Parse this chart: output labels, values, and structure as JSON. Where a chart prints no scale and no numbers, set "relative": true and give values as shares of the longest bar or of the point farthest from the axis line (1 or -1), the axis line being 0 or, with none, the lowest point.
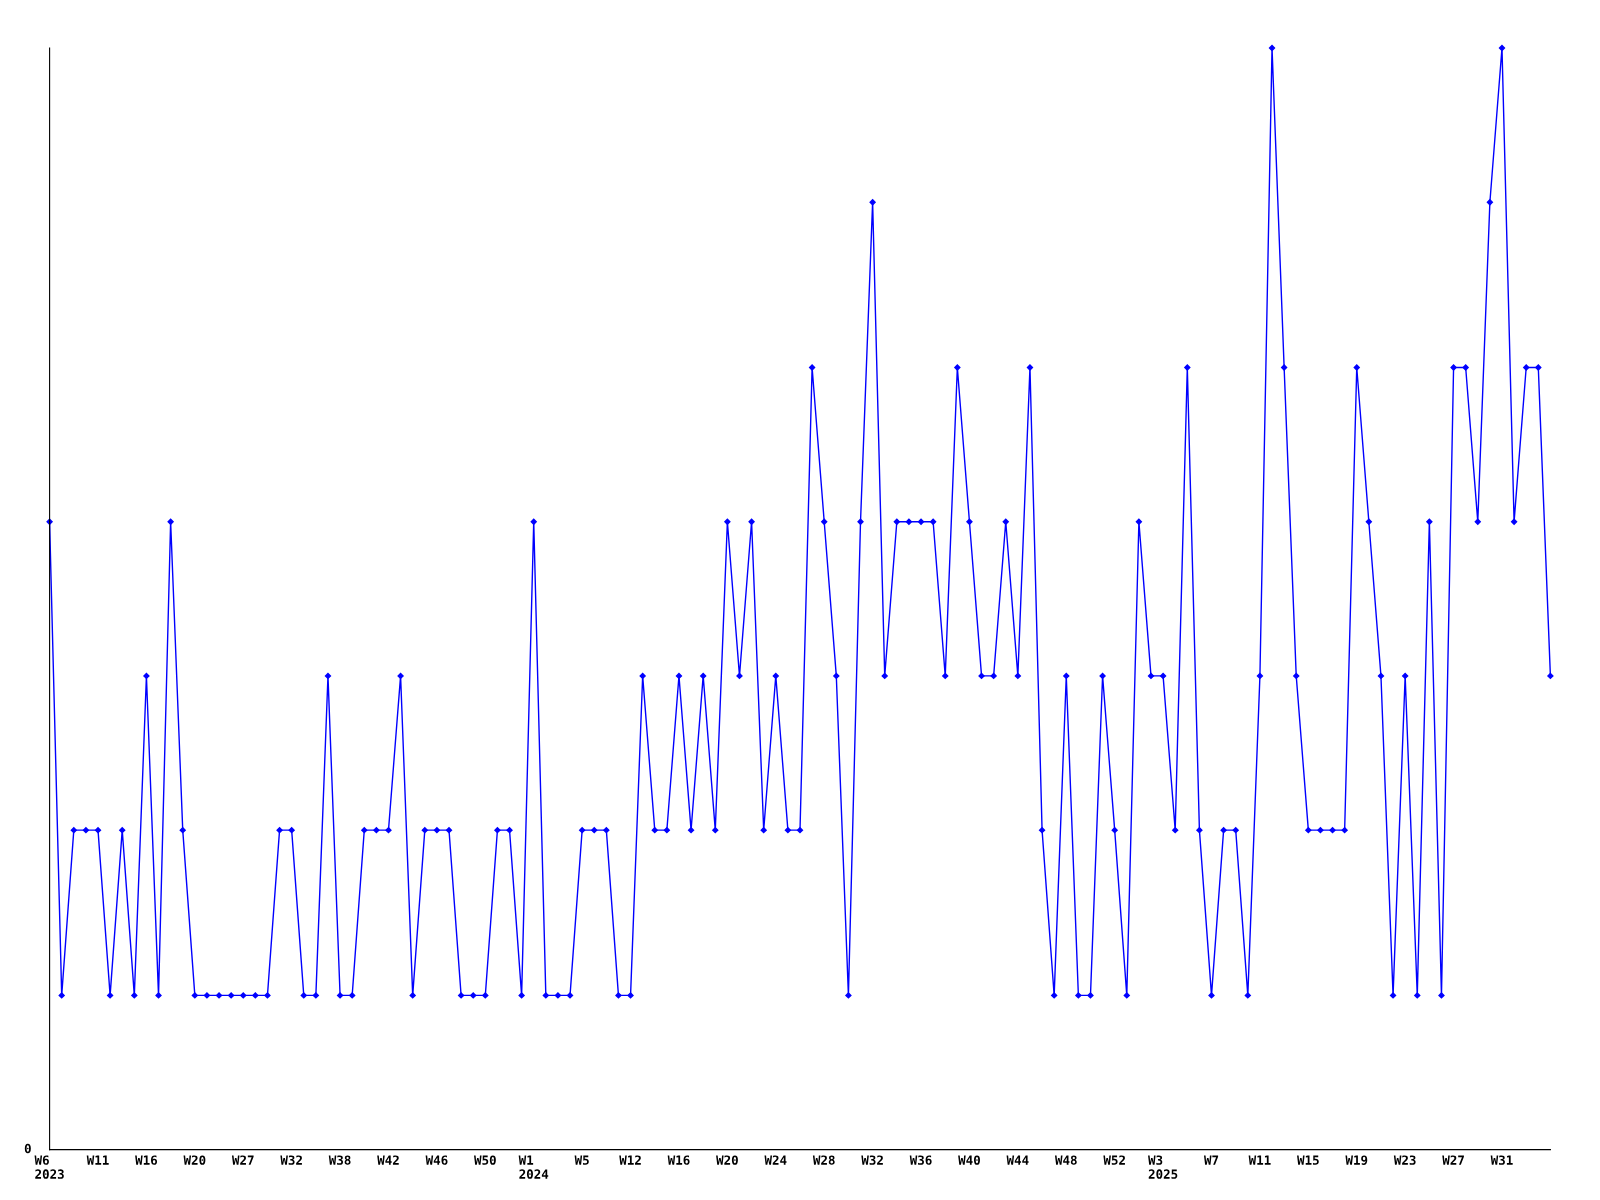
{
  "chart_data": {
    "type": "line",
    "relative": true,
    "categories": [
      "W6\n2023",
      null,
      null,
      null,
      "W11",
      null,
      null,
      null,
      "W16",
      null,
      null,
      null,
      "W20",
      null,
      null,
      null,
      "W27",
      null,
      null,
      null,
      "W32",
      null,
      null,
      null,
      "W38",
      null,
      null,
      null,
      "W42",
      null,
      null,
      null,
      "W46",
      null,
      null,
      null,
      "W50",
      null,
      null,
      null,
      "W1\n2024",
      null,
      null,
      null,
      "W5",
      null,
      null,
      null,
      "W12",
      null,
      null,
      null,
      "W16",
      null,
      null,
      null,
      "W20",
      null,
      null,
      null,
      "W24",
      null,
      null,
      null,
      "W28",
      null,
      null,
      null,
      "W32",
      null,
      null,
      null,
      "W36",
      null,
      null,
      null,
      "W40",
      null,
      null,
      null,
      "W44",
      null,
      null,
      null,
      "W48",
      null,
      null,
      null,
      "W52",
      null,
      null,
      null,
      "W3\n2025",
      null,
      null,
      null,
      "W7",
      null,
      null,
      null,
      "W11",
      null,
      null,
      null,
      "W15",
      null,
      null,
      null,
      "W19",
      null,
      null,
      null,
      "W23",
      null,
      null,
      null,
      "W27",
      null,
      null,
      null,
      "W31",
      null,
      null,
      null,
      null
    ],
    "series": [
      {
        "color": "#0000ff",
        "values": [
          0.57,
          0.14,
          0.29,
          0.29,
          0.29,
          0.14,
          0.29,
          0.14,
          0.43,
          0.14,
          0.57,
          0.29,
          0.14,
          0.14,
          0.14,
          0.14,
          0.14,
          0.14,
          0.14,
          0.29,
          0.29,
          0.14,
          0.14,
          0.43,
          0.14,
          0.14,
          0.29,
          0.29,
          0.29,
          0.43,
          0.14,
          0.29,
          0.29,
          0.29,
          0.14,
          0.14,
          0.14,
          0.29,
          0.29,
          0.14,
          0.57,
          0.14,
          0.14,
          0.14,
          0.29,
          0.29,
          0.29,
          0.14,
          0.14,
          0.43,
          0.29,
          0.29,
          0.43,
          0.29,
          0.43,
          0.29,
          0.57,
          0.43,
          0.57,
          0.29,
          0.43,
          0.29,
          0.29,
          0.71,
          0.57,
          0.43,
          0.14,
          0.57,
          0.86,
          0.43,
          0.57,
          0.57,
          0.57,
          0.57,
          0.43,
          0.71,
          0.57,
          0.43,
          0.43,
          0.57,
          0.43,
          0.71,
          0.29,
          0.14,
          0.43,
          0.14,
          0.14,
          0.43,
          0.29,
          0.14,
          0.57,
          0.43,
          0.43,
          0.29,
          0.71,
          0.29,
          0.14,
          0.29,
          0.29,
          0.14,
          0.43,
          1,
          0.71,
          0.43,
          0.29,
          0.29,
          0.29,
          0.29,
          0.71,
          0.57,
          0.43,
          0.14,
          0.43,
          0.14,
          0.57,
          0.14,
          0.71,
          0.71,
          0.57,
          0.86,
          1,
          0.57,
          0.71,
          0.71,
          0.43
        ]
      }
    ],
    "marker": "diamond",
    "line_style": "solid",
    "grid": false,
    "legend": false,
    "annotations": [
      "0"
    ]
  }
}
